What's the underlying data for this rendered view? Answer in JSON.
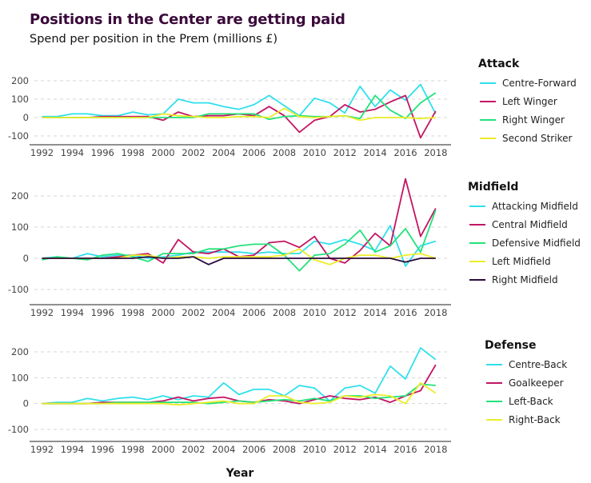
{
  "title": "Positions in the Center are getting paid",
  "subtitle": "Spend per position in the Prem (millions £)",
  "xlabel": "Year",
  "chart_data": [
    {
      "type": "line",
      "panel": "attack",
      "legend_title": "Attack",
      "x": [
        1992,
        1993,
        1994,
        1995,
        1996,
        1997,
        1998,
        1999,
        2000,
        2001,
        2002,
        2003,
        2004,
        2005,
        2006,
        2007,
        2008,
        2009,
        2010,
        2011,
        2012,
        2013,
        2014,
        2015,
        2016,
        2017,
        2018
      ],
      "x_ticks": [
        1992,
        1994,
        1996,
        1998,
        2000,
        2002,
        2004,
        2006,
        2008,
        2010,
        2012,
        2014,
        2016,
        2018
      ],
      "y_ticks": [
        200,
        100,
        0,
        -100
      ],
      "ylim": [
        -140,
        240
      ],
      "grid": "horizontal dashed",
      "legend_position": "right",
      "series": [
        {
          "name": "Centre-Forward",
          "color": "#2fe0ec",
          "values": [
            5,
            5,
            20,
            20,
            10,
            10,
            30,
            15,
            20,
            100,
            80,
            80,
            60,
            45,
            70,
            120,
            65,
            10,
            105,
            80,
            25,
            170,
            60,
            150,
            95,
            180,
            20
          ]
        },
        {
          "name": "Left Winger",
          "color": "#c41463",
          "values": [
            0,
            0,
            0,
            0,
            5,
            5,
            5,
            5,
            -15,
            30,
            5,
            10,
            10,
            20,
            10,
            60,
            10,
            -80,
            -15,
            5,
            70,
            30,
            45,
            85,
            120,
            -110,
            35
          ]
        },
        {
          "name": "Right Winger",
          "color": "#22e27a",
          "values": [
            0,
            0,
            0,
            0,
            0,
            0,
            0,
            0,
            0,
            0,
            0,
            20,
            20,
            20,
            20,
            -10,
            5,
            10,
            5,
            5,
            10,
            -5,
            120,
            40,
            -5,
            80,
            135
          ]
        },
        {
          "name": "Second Striker",
          "color": "#ecec2a",
          "values": [
            0,
            0,
            0,
            0,
            0,
            0,
            0,
            0,
            20,
            10,
            5,
            0,
            0,
            5,
            5,
            0,
            50,
            5,
            0,
            5,
            10,
            -15,
            0,
            0,
            0,
            -5,
            0
          ]
        }
      ]
    },
    {
      "type": "line",
      "panel": "midfield",
      "legend_title": "Midfield",
      "x": [
        1992,
        1993,
        1994,
        1995,
        1996,
        1997,
        1998,
        1999,
        2000,
        2001,
        2002,
        2003,
        2004,
        2005,
        2006,
        2007,
        2008,
        2009,
        2010,
        2011,
        2012,
        2013,
        2014,
        2015,
        2016,
        2017,
        2018
      ],
      "x_ticks": [
        1992,
        1994,
        1996,
        1998,
        2000,
        2002,
        2004,
        2006,
        2008,
        2010,
        2012,
        2014,
        2016,
        2018
      ],
      "y_ticks": [
        200,
        100,
        0,
        -100
      ],
      "ylim": [
        -145,
        265
      ],
      "grid": "horizontal dashed",
      "legend_position": "right",
      "series": [
        {
          "name": "Attacking Midfield",
          "color": "#2fe0ec",
          "values": [
            0,
            5,
            0,
            15,
            5,
            10,
            10,
            0,
            5,
            10,
            20,
            20,
            20,
            20,
            15,
            20,
            15,
            15,
            55,
            45,
            60,
            45,
            25,
            105,
            -25,
            40,
            55
          ]
        },
        {
          "name": "Central Midfield",
          "color": "#c41463",
          "values": [
            0,
            0,
            0,
            0,
            0,
            5,
            10,
            15,
            -15,
            60,
            20,
            15,
            30,
            5,
            10,
            50,
            55,
            35,
            70,
            0,
            -15,
            25,
            80,
            40,
            255,
            70,
            160
          ]
        },
        {
          "name": "Defensive Midfield",
          "color": "#22e27a",
          "values": [
            -5,
            5,
            0,
            -5,
            10,
            15,
            5,
            -10,
            15,
            15,
            15,
            30,
            30,
            40,
            45,
            45,
            10,
            -40,
            10,
            15,
            45,
            90,
            20,
            40,
            95,
            20,
            155
          ]
        },
        {
          "name": "Left Midfield",
          "color": "#ecec2a",
          "values": [
            0,
            0,
            0,
            0,
            0,
            0,
            10,
            10,
            0,
            5,
            5,
            0,
            5,
            5,
            5,
            5,
            10,
            30,
            -5,
            -20,
            0,
            10,
            10,
            0,
            10,
            15,
            0
          ]
        },
        {
          "name": "Right Midfield",
          "color": "#2a0a3a",
          "values": [
            0,
            0,
            0,
            0,
            0,
            0,
            0,
            5,
            0,
            0,
            5,
            -20,
            0,
            0,
            0,
            0,
            0,
            0,
            0,
            0,
            0,
            0,
            0,
            0,
            -12,
            0,
            0
          ]
        }
      ]
    },
    {
      "type": "line",
      "panel": "defense",
      "legend_title": "Defense",
      "x": [
        1992,
        1993,
        1994,
        1995,
        1996,
        1997,
        1998,
        1999,
        2000,
        2001,
        2002,
        2003,
        2004,
        2005,
        2006,
        2007,
        2008,
        2009,
        2010,
        2011,
        2012,
        2013,
        2014,
        2015,
        2016,
        2017,
        2018
      ],
      "x_ticks": [
        1992,
        1994,
        1996,
        1998,
        2000,
        2002,
        2004,
        2006,
        2008,
        2010,
        2012,
        2014,
        2016,
        2018
      ],
      "y_ticks": [
        200,
        100,
        0,
        -100
      ],
      "ylim": [
        -145,
        260
      ],
      "grid": "horizontal dashed",
      "legend_position": "right",
      "series": [
        {
          "name": "Centre-Back",
          "color": "#2fe0ec",
          "values": [
            0,
            5,
            5,
            20,
            10,
            20,
            25,
            15,
            30,
            15,
            30,
            25,
            80,
            35,
            55,
            55,
            30,
            70,
            60,
            10,
            60,
            70,
            40,
            145,
            95,
            215,
            170
          ]
        },
        {
          "name": "Goalkeeper",
          "color": "#c41463",
          "values": [
            0,
            0,
            0,
            0,
            5,
            5,
            5,
            5,
            10,
            25,
            10,
            20,
            25,
            10,
            5,
            15,
            10,
            0,
            15,
            30,
            20,
            15,
            25,
            5,
            30,
            50,
            150
          ]
        },
        {
          "name": "Left-Back",
          "color": "#22e27a",
          "values": [
            0,
            0,
            0,
            0,
            0,
            5,
            5,
            5,
            5,
            5,
            5,
            0,
            5,
            10,
            5,
            10,
            15,
            10,
            20,
            10,
            30,
            30,
            20,
            25,
            30,
            75,
            70
          ]
        },
        {
          "name": "Right-Back",
          "color": "#ecec2a",
          "values": [
            0,
            0,
            0,
            0,
            0,
            0,
            0,
            0,
            0,
            -5,
            0,
            5,
            10,
            0,
            0,
            30,
            30,
            5,
            0,
            5,
            30,
            25,
            35,
            30,
            0,
            80,
            40
          ]
        }
      ]
    }
  ]
}
